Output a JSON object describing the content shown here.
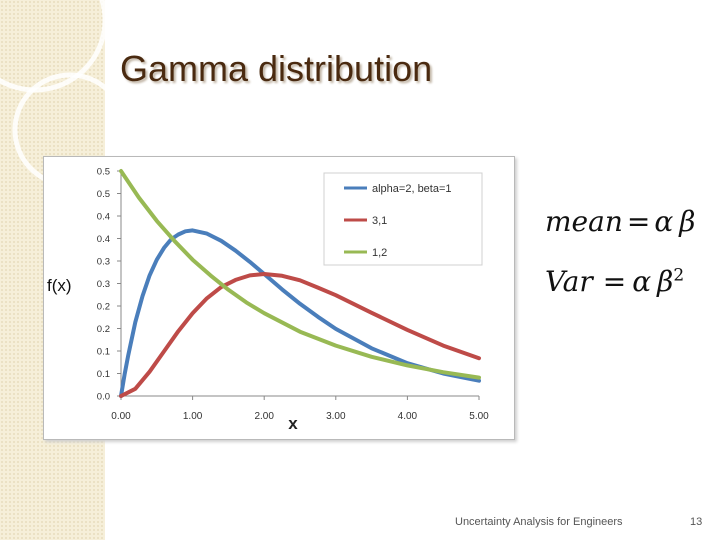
{
  "slide": {
    "title": "Gamma distribution",
    "footer": "Uncertainty Analysis for Engineers",
    "page_number": "13"
  },
  "formulas": {
    "mean": {
      "lhs": "mean",
      "eq": "=",
      "a": "α",
      "b": "β"
    },
    "var": {
      "lhs": "Var",
      "eq": "=",
      "a": "α",
      "b": "β",
      "exp": "2"
    }
  },
  "colors": {
    "series": [
      "#4a7ebb",
      "#be4b48",
      "#98b954"
    ],
    "title": "#4a2a10"
  },
  "chart_data": {
    "type": "line",
    "xlabel": "x",
    "ylabel": "f(x)",
    "xlim": [
      0,
      5
    ],
    "ylim": [
      0,
      0.5
    ],
    "x_ticks": [
      0,
      1,
      2,
      3,
      4,
      5
    ],
    "x_tick_labels": [
      "0.00",
      "1.00",
      "2.00",
      "3.00",
      "4.00",
      "5.00"
    ],
    "y_ticks": [
      0,
      0.05,
      0.1,
      0.15,
      0.2,
      0.25,
      0.3,
      0.35,
      0.4,
      0.45,
      0.5
    ],
    "y_tick_labels": [
      "0.0",
      "0.1",
      "0.1",
      "0.2",
      "0.2",
      "0.3",
      "0.3",
      "0.4",
      "0.4",
      "0.5",
      "0.5"
    ],
    "grid": false,
    "legend_position": "top-right",
    "series": [
      {
        "name": "alpha=2, beta=1",
        "x": [
          0,
          0.05,
          0.1,
          0.2,
          0.3,
          0.4,
          0.5,
          0.6,
          0.7,
          0.8,
          0.9,
          1.0,
          1.2,
          1.4,
          1.6,
          1.8,
          2.0,
          2.25,
          2.5,
          2.75,
          3.0,
          3.5,
          4.0,
          4.5,
          5.0
        ],
        "y": [
          0,
          0.048,
          0.09,
          0.164,
          0.222,
          0.268,
          0.303,
          0.329,
          0.348,
          0.359,
          0.366,
          0.368,
          0.361,
          0.345,
          0.323,
          0.298,
          0.271,
          0.237,
          0.205,
          0.176,
          0.149,
          0.106,
          0.073,
          0.05,
          0.034
        ]
      },
      {
        "name": "3,1",
        "x": [
          0,
          0.2,
          0.4,
          0.6,
          0.8,
          1.0,
          1.2,
          1.4,
          1.6,
          1.8,
          2.0,
          2.25,
          2.5,
          2.75,
          3.0,
          3.5,
          4.0,
          4.5,
          5.0
        ],
        "y": [
          0,
          0.016,
          0.054,
          0.099,
          0.144,
          0.184,
          0.217,
          0.242,
          0.258,
          0.268,
          0.271,
          0.267,
          0.257,
          0.241,
          0.224,
          0.185,
          0.147,
          0.112,
          0.084
        ]
      },
      {
        "name": "1,2",
        "x": [
          0,
          0.25,
          0.5,
          0.75,
          1.0,
          1.25,
          1.5,
          1.75,
          2.0,
          2.5,
          3.0,
          3.5,
          4.0,
          4.5,
          5.0
        ],
        "y": [
          0.5,
          0.441,
          0.389,
          0.344,
          0.303,
          0.268,
          0.236,
          0.208,
          0.184,
          0.143,
          0.112,
          0.087,
          0.068,
          0.053,
          0.041
        ]
      }
    ]
  }
}
